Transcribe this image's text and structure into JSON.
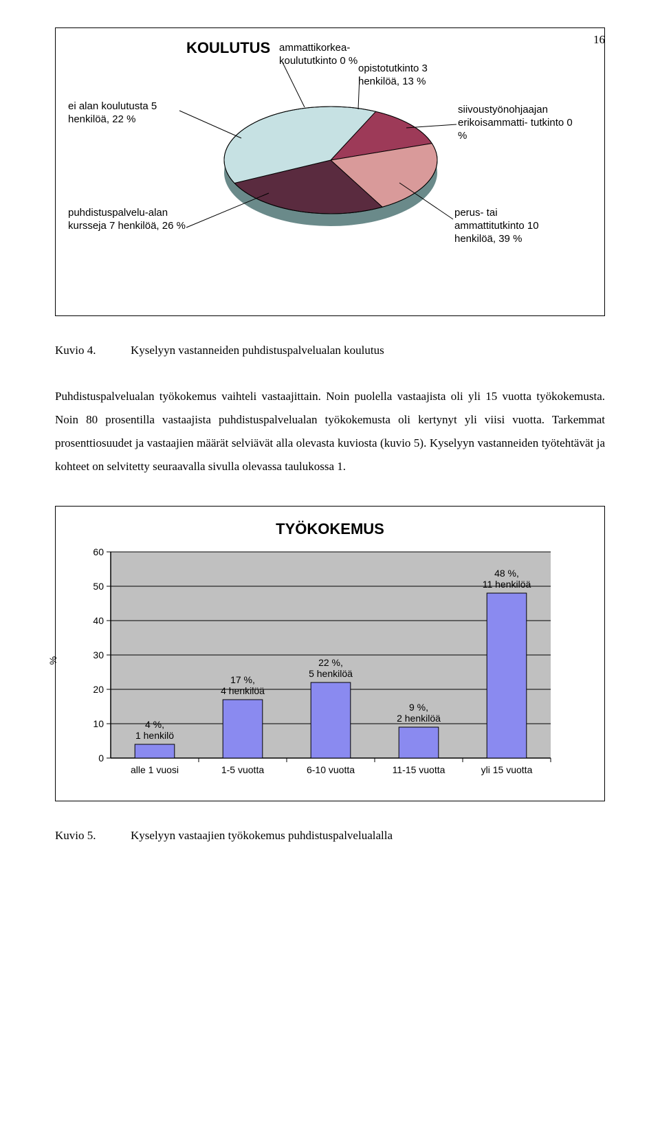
{
  "page_number": "16",
  "chart1": {
    "title": "KOULUTUS",
    "type": "pie",
    "labels": {
      "opisto": "opistotutkinto\n3 henkilöä, 13 %",
      "amk": "ammattikorkea-\nkoulututkinto 0 %",
      "ei_alan": "ei alan koulutusta\n5 henkilöä, 22 %",
      "siivous": "siivoustyönohjaajan\nerikoisammatti-\ntutkinto 0 %",
      "puhdistus": "puhdistuspalvelu-alan\nkursseja\n7 henkilöä, 26 %",
      "perus": "perus- tai\nammattitutkinto\n10 henkilöä, 39 %"
    },
    "slices": {
      "opisto": 13,
      "ei_alan": 22,
      "puhdistus": 26,
      "perus": 39
    },
    "colors": {
      "opisto": "#9d3a58",
      "ei_alan": "#d99a9a",
      "puhdistus": "#5a2b3f",
      "perus": "#c6e1e3",
      "side": "#6a8a8a",
      "outline": "#000000"
    }
  },
  "kuvio4": {
    "label": "Kuvio 4.",
    "text": "Kyselyyn vastanneiden puhdistuspalvelualan koulutus"
  },
  "paragraph": "Puhdistuspalvelualan työkokemus vaihteli vastaajittain. Noin puolella vastaajista oli yli 15 vuotta työkokemusta. Noin 80 prosentilla vastaajista puhdistuspalvelualan työkokemusta oli kertynyt yli viisi vuotta. Tarkemmat prosenttiosuudet ja vastaajien määrät selviävät alla olevasta kuviosta (kuvio 5). Kyselyyn vastanneiden työtehtävät ja kohteet on selvitetty seuraavalla sivulla olevassa taulukossa 1.",
  "chart2": {
    "title": "TYÖKOKEMUS",
    "type": "bar",
    "y_axis_label": "%",
    "categories": [
      "alle 1 vuosi",
      "1-5 vuotta",
      "6-10 vuotta",
      "11-15 vuotta",
      "yli 15 vuotta"
    ],
    "values": [
      4,
      17,
      22,
      9,
      48
    ],
    "bar_labels": [
      "4 %,\n1 henkilö",
      "17 %,\n4 henkilöä",
      "22 %,\n5 henkilöä",
      "9 %,\n2 henkilöä",
      "48 %,\n11 henkilöä"
    ],
    "ylim": [
      0,
      60
    ],
    "ytick_step": 10,
    "bar_color": "#8a8af0",
    "bar_border": "#000000",
    "plot_bg": "#c0c0c0",
    "grid_color": "#000000"
  },
  "kuvio5": {
    "label": "Kuvio 5.",
    "text": "Kyselyyn vastaajien työkokemus puhdistuspalvelualalla"
  }
}
